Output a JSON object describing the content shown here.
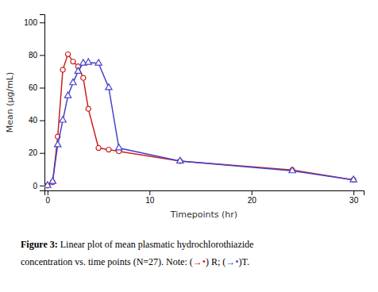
{
  "chart_data": {
    "type": "line",
    "xlabel": "Timepoints (hr)",
    "ylabel": "Mean (µg/mL)",
    "x": [
      0,
      0.5,
      1,
      1.5,
      2,
      2.5,
      3,
      3.5,
      4,
      5,
      6,
      7,
      13,
      24,
      30
    ],
    "series": [
      {
        "color": "#cc2222",
        "marker": "circle",
        "values": [
          0,
          2,
          30,
          71,
          80.5,
          76,
          73,
          66,
          47,
          23,
          22,
          21,
          15,
          9.5,
          3.5
        ]
      },
      {
        "color": "#4444cc",
        "marker": "triangle",
        "values": [
          0,
          2.5,
          25,
          40,
          55,
          63,
          70,
          75,
          75.5,
          75,
          60,
          23,
          15,
          9,
          3.5
        ]
      }
    ],
    "xlim": [
      -0.3,
      31
    ],
    "ylim": [
      -3,
      105
    ],
    "xticks": [
      0,
      10,
      20,
      30
    ],
    "yticks": [
      0,
      20,
      40,
      60,
      80,
      100
    ],
    "grid": false,
    "annotations": [
      "Figure 3: ",
      "Linear plot of mean plasmatic hydrochlorothiazide",
      "concentration vs. time points (N=27). Note: (",
      "→•",
      ") R; (",
      "→•",
      ")T."
    ]
  }
}
